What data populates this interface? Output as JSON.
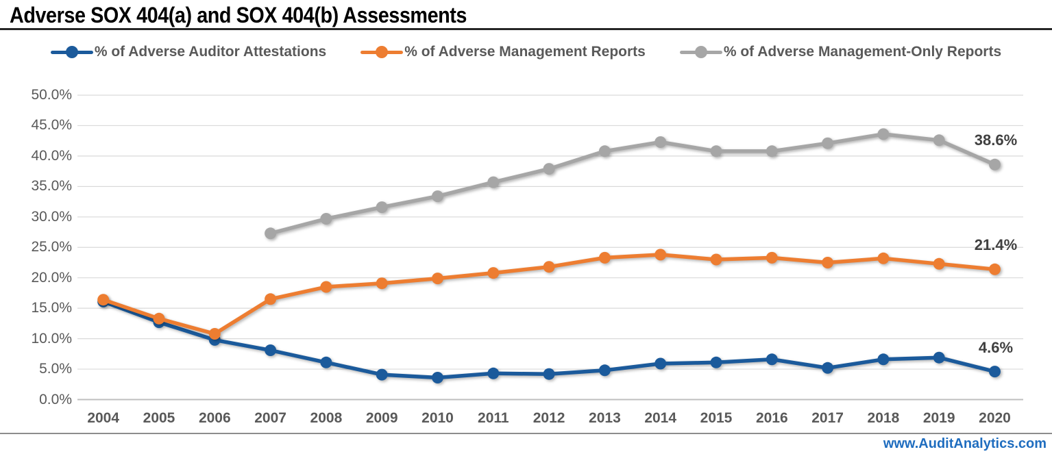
{
  "title": "Adverse SOX 404(a) and SOX 404(b) Assessments",
  "footer": {
    "website": "www.AuditAnalytics.com"
  },
  "colors": {
    "blue": "#1B5A9B",
    "orange": "#ED7D31",
    "gray": "#A6A6A6",
    "grid": "#D9D9D9",
    "zero_axis": "#BFBFBF",
    "axis_text": "#595959",
    "end_label_text": "#404040",
    "link_blue": "#1F6DBF",
    "title_rule": "#262626",
    "bottom_rule": "#8C8C8C"
  },
  "chart_data": {
    "type": "line",
    "title": "Adverse SOX 404(a) and SOX 404(b) Assessments",
    "categories": [
      "2004",
      "2005",
      "2006",
      "2007",
      "2008",
      "2009",
      "2010",
      "2011",
      "2012",
      "2013",
      "2014",
      "2015",
      "2016",
      "2017",
      "2018",
      "2019",
      "2020"
    ],
    "series": [
      {
        "key": "auditor-attestations",
        "name": "% of Adverse Auditor Attestations",
        "color_key": "blue",
        "end_label": "4.6%",
        "values": [
          16.1,
          12.7,
          9.8,
          8.1,
          6.1,
          4.1,
          3.6,
          4.3,
          4.2,
          4.8,
          5.9,
          6.1,
          6.6,
          5.2,
          6.6,
          6.9,
          4.6
        ]
      },
      {
        "key": "management-reports",
        "name": "% of Adverse Management Reports",
        "color_key": "orange",
        "end_label": "21.4%",
        "values": [
          16.4,
          13.3,
          10.8,
          16.5,
          18.5,
          19.1,
          19.9,
          20.8,
          21.8,
          23.3,
          23.8,
          23.0,
          23.3,
          22.5,
          23.2,
          22.3,
          21.4
        ]
      },
      {
        "key": "management-only-reports",
        "name": "% of Adverse Management-Only Reports",
        "color_key": "gray",
        "end_label": "38.6%",
        "values": [
          null,
          null,
          null,
          27.3,
          29.7,
          31.6,
          33.4,
          35.7,
          37.9,
          40.8,
          42.3,
          40.8,
          40.8,
          42.1,
          43.6,
          42.6,
          38.6
        ]
      }
    ],
    "ylim": [
      0,
      50
    ],
    "ytick_step": 5,
    "ytick_labels": [
      "50.0%",
      "45.0%",
      "40.0%",
      "35.0%",
      "30.0%",
      "25.0%",
      "20.0%",
      "15.0%",
      "10.0%",
      "5.0%",
      "0.0%"
    ],
    "xlabel": "",
    "ylabel": "",
    "grid": true,
    "legend_position": "top"
  }
}
